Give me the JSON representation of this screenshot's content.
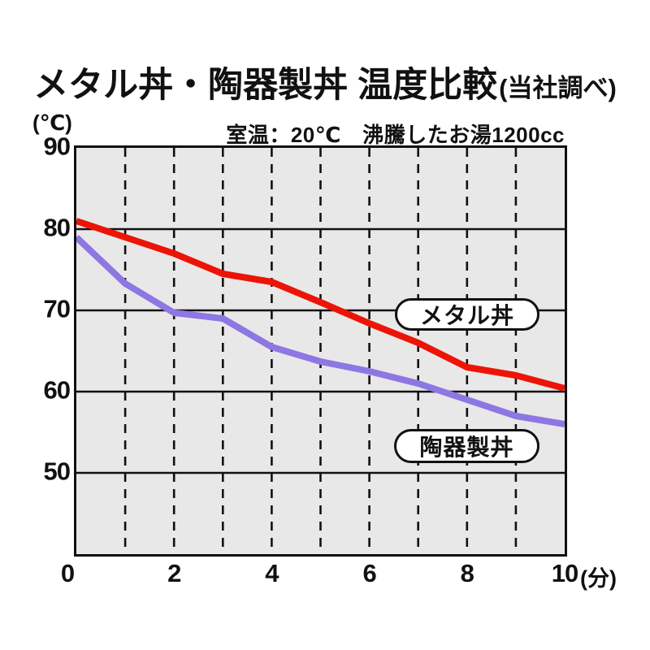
{
  "title": {
    "main": "メタル丼・陶器製丼 温度比較",
    "paren": "(当社調べ)"
  },
  "subtitle": "室温：20℃　沸騰したお湯1200cc",
  "axes": {
    "y_unit": "(℃)",
    "x_unit": "(分)"
  },
  "legend": {
    "metal": "メタル丼",
    "ceramic": "陶器製丼"
  },
  "colors": {
    "metal_line": "#ec1407",
    "ceramic_line": "#8d77e2",
    "plot_bg": "#e8e8e8",
    "grid": "#111111"
  },
  "chart_data": {
    "type": "line",
    "title": "メタル丼・陶器製丼 温度比較（当社調べ）",
    "subtitle": "室温：20℃　沸騰したお湯1200cc",
    "xlabel": "(分)",
    "ylabel": "(℃)",
    "x": [
      0,
      1,
      2,
      3,
      4,
      5,
      6,
      7,
      8,
      9,
      10
    ],
    "series": [
      {
        "name": "メタル丼",
        "color": "#ec1407",
        "values": [
          81,
          79,
          77,
          74.5,
          73.5,
          71,
          68.4,
          66,
          63,
          62,
          60.4
        ]
      },
      {
        "name": "陶器製丼",
        "color": "#8d77e2",
        "values": [
          79,
          73.3,
          69.7,
          69,
          65.5,
          63.7,
          62.5,
          61,
          59,
          57,
          56
        ]
      }
    ],
    "xlim": [
      0,
      10
    ],
    "ylim": [
      40,
      90
    ],
    "xticks": [
      0,
      2,
      4,
      6,
      8,
      10
    ],
    "yticks": [
      90,
      80,
      70,
      60,
      50
    ],
    "grid": {
      "horizontal": "solid",
      "vertical": "dashed",
      "vertical_interval": 1
    },
    "legend_position": "on-chart-pills"
  }
}
